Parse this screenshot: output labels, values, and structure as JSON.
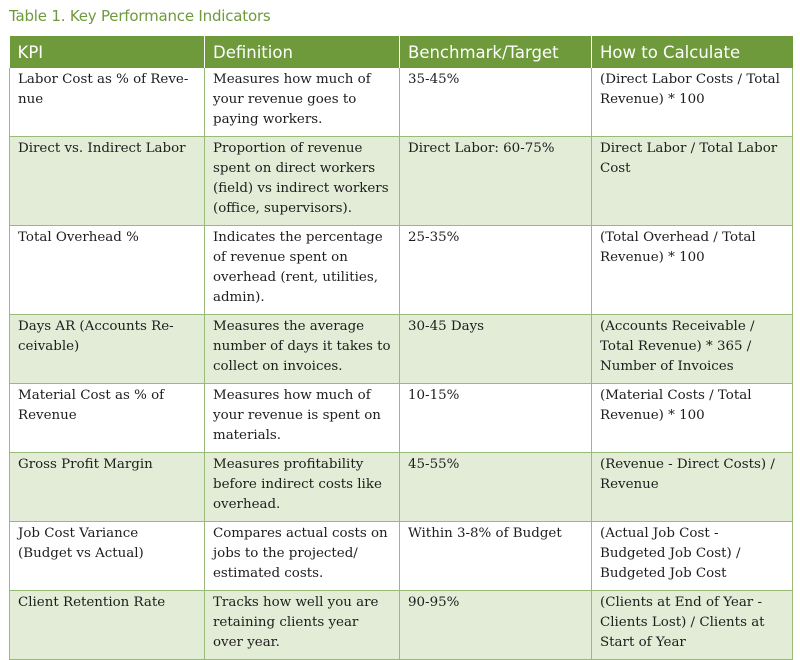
{
  "caption": "Table 1. Key Performance Indicators",
  "headers": [
    "KPI",
    "Definition",
    "Benchmark/Target",
    "How to Calculate"
  ],
  "rows": [
    {
      "kpi": "Labor Cost as % of Reve-nue",
      "definition": "Measures how much of your revenue goes to paying workers.",
      "benchmark": "35-45%",
      "calculation": "(Direct Labor Costs / Total Revenue) * 100"
    },
    {
      "kpi": "Direct vs. Indirect Labor",
      "definition": "Proportion of revenue spent on direct workers (field) vs indirect workers (office, supervisors).",
      "benchmark": "Direct Labor: 60-75%",
      "calculation": "Direct Labor / Total Labor Cost"
    },
    {
      "kpi": "Total Overhead %",
      "definition": "Indicates the percentage of revenue spent on overhead (rent, utilities, admin).",
      "benchmark": "25-35%",
      "calculation": "(Total Overhead / Total Revenue) * 100"
    },
    {
      "kpi": "Days AR (Accounts Re-ceivable)",
      "definition": "Measures the average number of days it takes to collect on invoices.",
      "benchmark": "30-45 Days",
      "calculation": "(Accounts Receivable / Total Revenue) * 365 / Number of Invoices"
    },
    {
      "kpi": "Material Cost as % of Revenue",
      "definition": "Measures how much of your revenue is spent on materials.",
      "benchmark": "10-15%",
      "calculation": "(Material Costs / Total Revenue) * 100"
    },
    {
      "kpi": "Gross Profit Margin",
      "definition": "Measures profitability before indirect costs like overhead.",
      "benchmark": "45-55%",
      "calculation": "(Revenue - Direct Costs) / Revenue"
    },
    {
      "kpi": "Job Cost Variance (Budget vs Actual)",
      "definition": "Compares actual costs on jobs to the projected/ estimated costs.",
      "benchmark": "Within 3-8% of Budget",
      "calculation": "(Actual Job Cost - Budgeted Job Cost) / Budgeted Job Cost"
    },
    {
      "kpi": "Client Retention Rate",
      "definition": "Tracks how well you are retaining clients year over year.",
      "benchmark": "90-95%",
      "calculation": "(Clients at End of Year - Clients Lost) / Clients at Start of Year"
    }
  ]
}
